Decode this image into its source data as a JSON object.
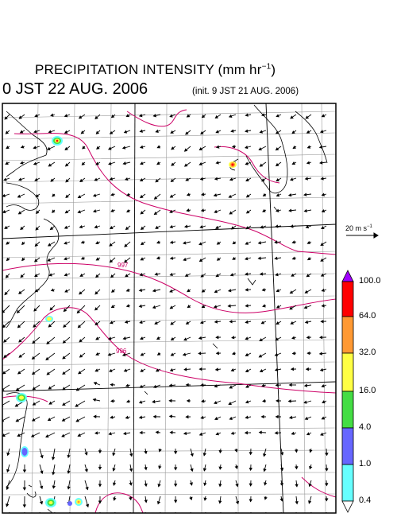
{
  "title": {
    "main": "PRECIPITATION INTENSITY (mm hr",
    "exp": "−1",
    "close": ")"
  },
  "valid_time": "0 JST 22 AUG. 2006",
  "init_time": "(init. 9 JST 21 AUG. 2006)",
  "vector_reference": {
    "value": "20 m s",
    "exp": "−1"
  },
  "isobar_labels": [
    "997",
    "996"
  ],
  "colorbar": {
    "levels": [
      "100.0",
      "64.0",
      "32.0",
      "16.0",
      "4.0",
      "1.0",
      "0.4"
    ],
    "colors": [
      "#a000ff",
      "#ff0000",
      "#ff9933",
      "#ffff44",
      "#44dd44",
      "#6666ff",
      "#66ffff",
      "#ffffff"
    ]
  },
  "colors": {
    "isobar": "#cc0066",
    "map_frame": "#000000",
    "grid": "#888888"
  }
}
